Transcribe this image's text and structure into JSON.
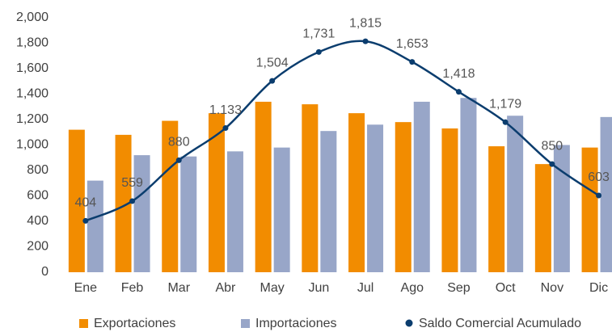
{
  "chart_data": {
    "type": "bar-line",
    "categories": [
      "Ene",
      "Feb",
      "Mar",
      "Abr",
      "May",
      "Jun",
      "Jul",
      "Ago",
      "Sep",
      "Oct",
      "Nov",
      "Dic"
    ],
    "series": [
      {
        "name": "Exportaciones",
        "color": "#f28c00",
        "type": "bar",
        "values": [
          1120,
          1080,
          1190,
          1250,
          1340,
          1320,
          1250,
          1180,
          1130,
          990,
          850,
          980
        ]
      },
      {
        "name": "Importaciones",
        "color": "#98a6c8",
        "type": "bar",
        "values": [
          720,
          920,
          910,
          950,
          980,
          1110,
          1160,
          1340,
          1370,
          1230,
          1000,
          1220
        ]
      },
      {
        "name": "Saldo Comercial Acumulado",
        "color": "#0b3d6e",
        "type": "line",
        "values": [
          404,
          559,
          880,
          1133,
          1504,
          1731,
          1815,
          1653,
          1418,
          1179,
          850,
          603
        ],
        "value_labels": [
          "404",
          "559",
          "880",
          "1.133",
          "1,504",
          "1,731",
          "1,815",
          "1,653",
          "1,418",
          "1,179",
          "850",
          "603"
        ]
      }
    ],
    "ylim": [
      0,
      2000
    ],
    "yticks": [
      0,
      200,
      400,
      600,
      800,
      {
        "value": 1000,
        "label": "1,000"
      },
      {
        "value": 1200,
        "label": "1,200"
      },
      {
        "value": 1400,
        "label": "1,400"
      },
      {
        "value": 1600,
        "label": "1,600"
      },
      {
        "value": 1800,
        "label": "1,800"
      },
      {
        "value": 2000,
        "label": "2,000"
      }
    ],
    "grid": false,
    "legend": "bottom"
  }
}
